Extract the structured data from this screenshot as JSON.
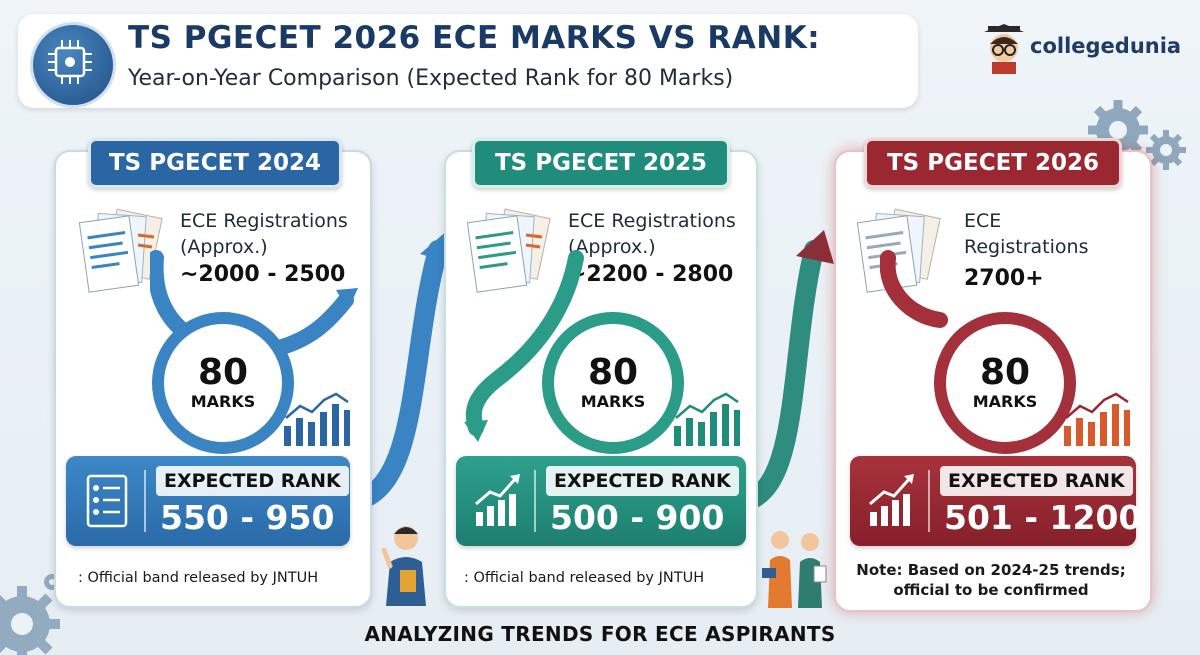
{
  "header": {
    "title": "TS PGECET 2026 ECE MARKS VS RANK:",
    "subtitle": "Year-on-Year Comparison (Expected Rank for 80 Marks)"
  },
  "logo": {
    "text": "collegedunia"
  },
  "cards": [
    {
      "year_label": "TS PGECET 2024",
      "reg_line1": "ECE Registrations",
      "reg_line2": "(Approx.)",
      "reg_value": "~2000 - 2500",
      "marks_value": "80",
      "marks_label": "MARKS",
      "rank_label": "EXPECTED RANK",
      "rank_value": "550 - 950",
      "note": ": Official band released by JNTUH",
      "color": "#2966a3"
    },
    {
      "year_label": "TS PGECET 2025",
      "reg_line1": "ECE Registrations",
      "reg_line2": "(Approx.)",
      "reg_value": "~2200 - 2800",
      "marks_value": "80",
      "marks_label": "MARKS",
      "rank_label": "EXPECTED RANK",
      "rank_value": "500 - 900",
      "note": ": Official band released by JNTUH",
      "color": "#1f8c7c"
    },
    {
      "year_label": "TS PGECET 2026",
      "reg_line1": "ECE",
      "reg_line2": "Registrations",
      "reg_value": "2700+",
      "marks_value": "80",
      "marks_label": "MARKS",
      "rank_label": "EXPECTED RANK",
      "rank_value": "501 - 1200",
      "note_line1": "Note: Based on 2024-25 trends;",
      "note_line2": "official to be confirmed",
      "color": "#9b2731"
    }
  ],
  "footer": "ANALYZING TRENDS FOR ECE ASPIRANTS",
  "icons": [
    "circuit-chip-icon",
    "document-stack-icon",
    "bar-chart-icon",
    "trend-arrow-icon",
    "checklist-icon",
    "gear-icon",
    "person-icon"
  ]
}
